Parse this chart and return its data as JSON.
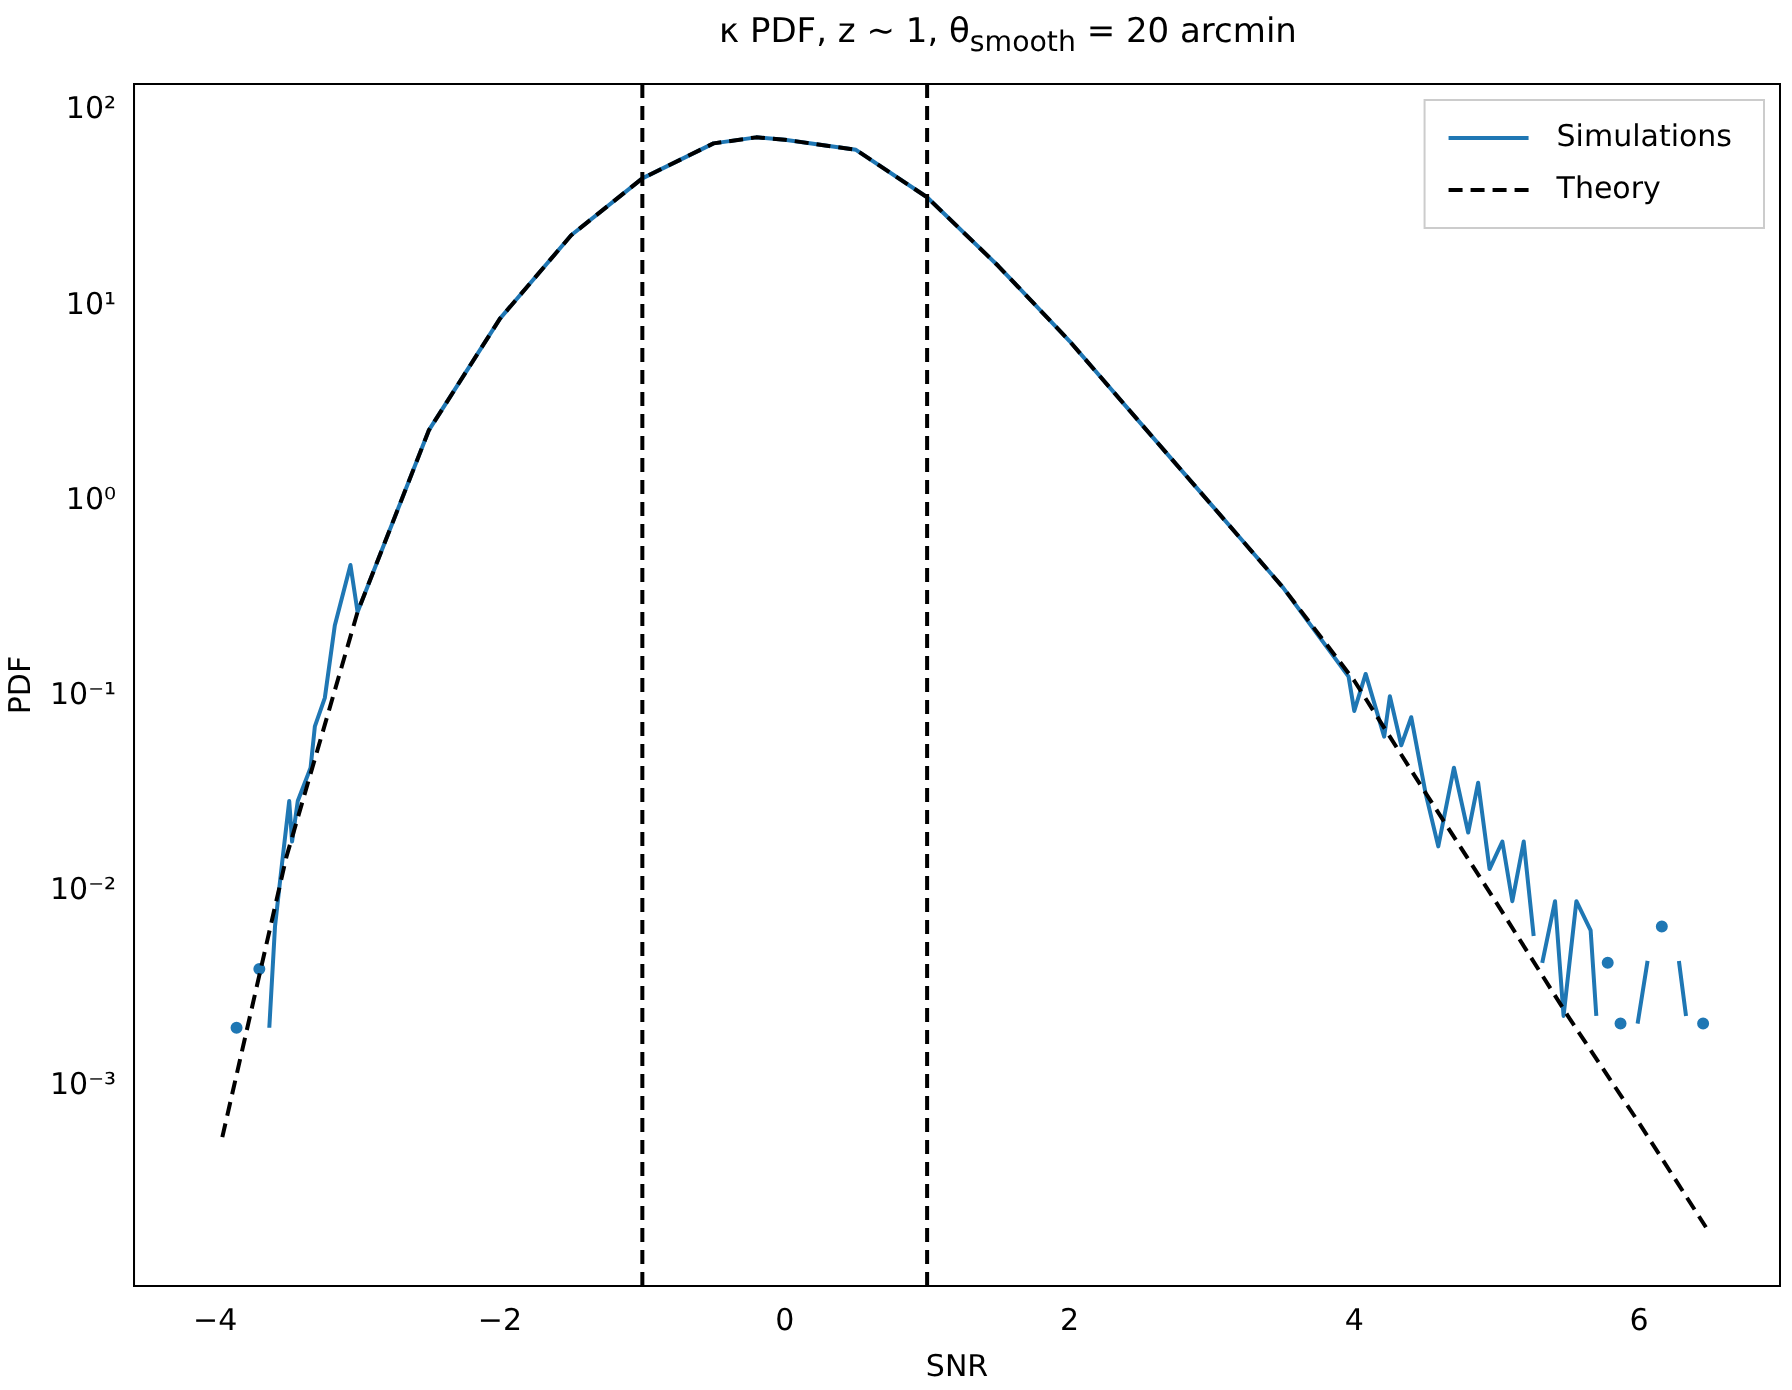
{
  "chart_data": {
    "type": "line",
    "title": "κ PDF, z ∼ 1, θ$_{smooth}$ = 20 arcmin",
    "xlabel": "SNR",
    "ylabel": "PDF",
    "xlim": [
      -4.57,
      6.99
    ],
    "xticks": [
      -4,
      -2,
      0,
      2,
      4,
      6
    ],
    "ylim": [
      9.5e-05,
      137
    ],
    "log": "y",
    "yticks": [
      {
        "value": 0.001,
        "label": "10⁻³"
      },
      {
        "value": 0.01,
        "label": "10⁻²"
      },
      {
        "value": 0.1,
        "label": "10⁻¹"
      },
      {
        "value": 1,
        "label": "10⁰"
      },
      {
        "value": 10,
        "label": "10¹"
      },
      {
        "value": 100,
        "label": "10²"
      }
    ],
    "grid": false,
    "legend": "top right",
    "series": [
      {
        "name": "Simulations",
        "color": "#1f77b4",
        "line_style": "solid",
        "x": [
          -3.85,
          -3.8,
          -3.69,
          -3.66,
          -3.62,
          -3.58,
          -3.53,
          -3.48,
          -3.46,
          -3.42,
          -3.33,
          -3.3,
          -3.23,
          -3.16,
          -3.05,
          -3,
          -2.5,
          -2,
          -1.5,
          -1,
          -0.5,
          -0.2,
          0,
          0.5,
          1,
          1.5,
          2,
          2.5,
          3,
          3.5,
          3.96,
          4,
          4.08,
          4.21,
          4.25,
          4.33,
          4.4,
          4.5,
          4.59,
          4.7,
          4.8,
          4.87,
          4.95,
          5.04,
          5.11,
          5.19,
          5.26,
          5.29,
          5.32,
          5.41,
          5.47,
          5.56,
          5.66,
          5.7,
          5.72,
          5.78,
          5.83,
          5.87,
          5.93,
          5.99,
          6.06,
          6.09,
          6.16,
          6.2,
          6.28,
          6.33,
          6.38,
          6.45
        ],
        "values": [
          0.002,
          null,
          0.004,
          null,
          0.002,
          0.0066,
          0.014,
          0.029,
          0.018,
          0.029,
          0.043,
          0.07,
          0.098,
          0.23,
          0.47,
          0.27,
          2.3,
          8.6,
          23,
          45,
          68,
          73,
          71,
          63,
          36,
          16,
          6.6,
          2.5,
          0.95,
          0.36,
          0.126,
          0.084,
          0.13,
          0.062,
          0.1,
          0.056,
          0.078,
          0.032,
          0.017,
          0.043,
          0.02,
          0.036,
          0.013,
          0.018,
          0.0089,
          0.018,
          0.0059,
          null,
          0.0043,
          0.0089,
          0.0023,
          0.0089,
          0.0063,
          0.0023,
          null,
          0.0043,
          null,
          0.0021,
          null,
          0.0021,
          0.0044,
          null,
          0.0066,
          null,
          0.0044,
          0.0023,
          null,
          0.0021
        ]
      },
      {
        "name": "Theory",
        "color": "#000000",
        "line_style": "dashed",
        "x": [
          -3.95,
          -3.5,
          -3,
          -2.5,
          -2,
          -1.5,
          -1,
          -0.5,
          -0.2,
          0,
          0.5,
          1,
          1.5,
          2,
          2.5,
          3,
          3.5,
          4,
          4.5,
          5,
          5.5,
          6,
          6.47
        ],
        "values": [
          0.00055,
          0.015,
          0.27,
          2.3,
          8.6,
          23,
          45,
          68,
          73,
          71,
          63,
          36,
          16,
          6.6,
          2.5,
          0.95,
          0.36,
          0.12,
          0.032,
          0.0087,
          0.0023,
          0.00065,
          0.00019
        ]
      }
    ],
    "ref_lines": [
      {
        "axis": "x",
        "value": -1,
        "color": "#000000",
        "line_style": "dashed"
      },
      {
        "axis": "x",
        "value": 1,
        "color": "#000000",
        "line_style": "dashed"
      }
    ]
  }
}
